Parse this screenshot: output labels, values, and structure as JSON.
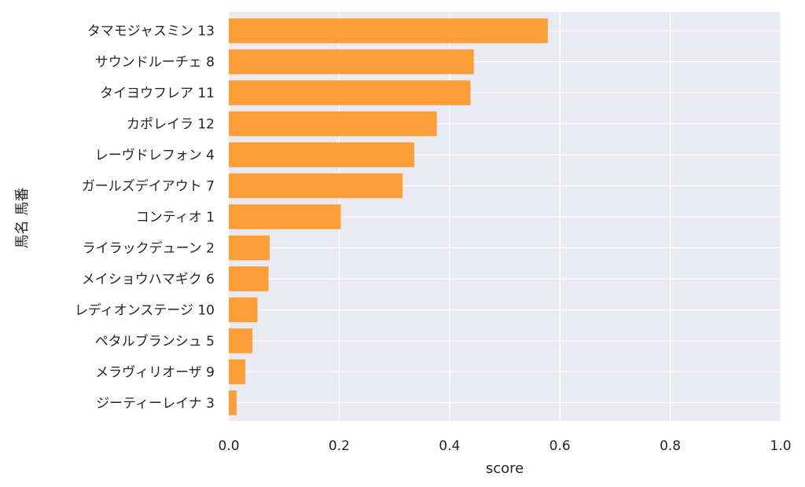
{
  "chart_data": {
    "type": "bar",
    "orientation": "horizontal",
    "categories": [
      "タマモジャスミン 13",
      "サウンドルーチェ 8",
      "タイヨウフレア 11",
      "カポレイラ 12",
      "レーヴドレフォン 4",
      "ガールズデイアウト 7",
      "コンティオ 1",
      "ライラックデューン 2",
      "メイショウハマギク 6",
      "レディオンステージ 10",
      "ペタルブランシュ 5",
      "メラヴィリオーザ 9",
      "ジーティーレイナ 3"
    ],
    "values": [
      0.578,
      0.444,
      0.438,
      0.377,
      0.336,
      0.315,
      0.203,
      0.074,
      0.072,
      0.052,
      0.043,
      0.03,
      0.014
    ],
    "xlabel": "score",
    "ylabel": "馬名 馬番",
    "xlim": [
      0,
      1.0
    ],
    "xticks": [
      "0.0",
      "0.2",
      "0.4",
      "0.6",
      "0.8",
      "1.0"
    ],
    "grid": true,
    "colors": {
      "bar": "#ff9a2e",
      "plot_background": "#eaeaf2",
      "grid": "#ffffff",
      "text": "#262626"
    }
  }
}
